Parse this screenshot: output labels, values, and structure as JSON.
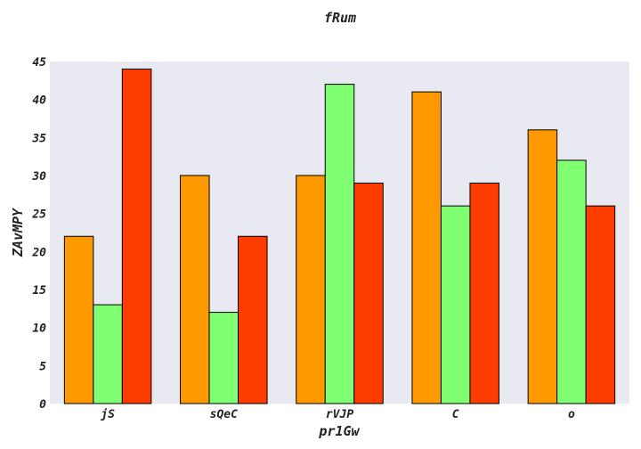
{
  "chart_data": {
    "type": "bar",
    "title": "fRum",
    "xlabel": "pr1Gw",
    "ylabel": "ZAvMPY",
    "categories": [
      "jS",
      "sQeC",
      "rVJP",
      "C",
      "o"
    ],
    "series": [
      {
        "color": "#ff9900",
        "values": [
          22,
          30,
          30,
          41,
          36
        ]
      },
      {
        "color": "#80ff73",
        "values": [
          13,
          12,
          42,
          26,
          32
        ]
      },
      {
        "color": "#ff3c00",
        "values": [
          44,
          22,
          29,
          29,
          26
        ]
      }
    ],
    "ylim": [
      0,
      45
    ],
    "yticks": [
      0,
      5,
      10,
      15,
      20,
      25,
      30,
      35,
      40,
      45
    ],
    "grid": false,
    "background": "#e9e9f2"
  }
}
